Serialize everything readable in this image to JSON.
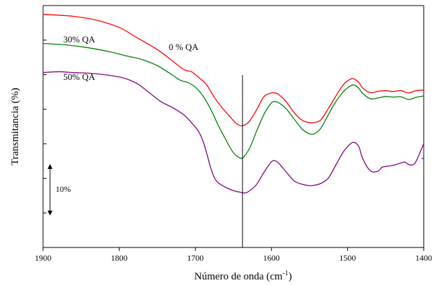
{
  "chart_data": {
    "type": "line",
    "xlabel": "Número de onda (cm",
    "xlabel_sup": "-1",
    "xlabel_end": ")",
    "ylabel": "Transmitancia (%)",
    "xlim": [
      1900,
      1400
    ],
    "x_ticks": [
      "1900",
      "1800",
      "1700",
      "1600",
      "1500",
      "1400"
    ],
    "reference_line_x": 1638,
    "scale_bar": {
      "label": "10%",
      "value": 10
    },
    "series": [
      {
        "name": "0 % QA",
        "color": "#ff0000",
        "x": [
          1900,
          1860,
          1830,
          1800,
          1780,
          1760,
          1745,
          1730,
          1715,
          1705,
          1695,
          1685,
          1675,
          1665,
          1655,
          1645,
          1638,
          1630,
          1620,
          1610,
          1600,
          1595,
          1590,
          1580,
          1570,
          1560,
          1550,
          1543,
          1535,
          1525,
          1515,
          1505,
          1495,
          1490,
          1485,
          1480,
          1470,
          1460,
          1450,
          1440,
          1430,
          1420,
          1410,
          1400
        ],
        "y": [
          80,
          79.3,
          78,
          75.5,
          72.5,
          69.5,
          67,
          64,
          61,
          60.3,
          58.2,
          55.7,
          51.5,
          48,
          45,
          42.3,
          41.8,
          43,
          47,
          51.7,
          53,
          53,
          52.4,
          49.8,
          46.2,
          43.7,
          42.8,
          42.9,
          43.8,
          47.8,
          52.1,
          56,
          57.9,
          57.6,
          56.5,
          54.7,
          53.1,
          53.6,
          53.8,
          53.5,
          53.8,
          53,
          53.8,
          54
        ]
      },
      {
        "name": "30% QA",
        "color": "#008000",
        "x": [
          1900,
          1870,
          1840,
          1810,
          1790,
          1770,
          1750,
          1735,
          1720,
          1710,
          1700,
          1690,
          1680,
          1670,
          1660,
          1650,
          1640,
          1635,
          1628,
          1620,
          1610,
          1600,
          1595,
          1590,
          1580,
          1570,
          1560,
          1550,
          1543,
          1535,
          1525,
          1515,
          1505,
          1495,
          1490,
          1485,
          1480,
          1470,
          1460,
          1450,
          1440,
          1430,
          1420,
          1410,
          1400
        ],
        "y": [
          70,
          69.5,
          68.5,
          67,
          65.7,
          64.5,
          62.4,
          60,
          57.4,
          56.6,
          55,
          52,
          47.5,
          42,
          37,
          32.5,
          30.6,
          31.5,
          34.4,
          39.6,
          45.6,
          49.6,
          50,
          49.6,
          47.4,
          44,
          40.7,
          39,
          39.1,
          41,
          45.7,
          50.2,
          53.6,
          55.6,
          55.6,
          54.5,
          52.8,
          51,
          51.3,
          51.8,
          51.6,
          51.7,
          50.8,
          51.5,
          52
        ]
      },
      {
        "name": "50% QA",
        "color": "#800080",
        "x": [
          1900,
          1880,
          1860,
          1840,
          1820,
          1800,
          1790,
          1775,
          1760,
          1745,
          1730,
          1715,
          1705,
          1695,
          1688,
          1680,
          1675,
          1670,
          1660,
          1650,
          1640,
          1635,
          1630,
          1620,
          1610,
          1600,
          1595,
          1590,
          1580,
          1570,
          1560,
          1550,
          1543,
          1535,
          1525,
          1515,
          1505,
          1495,
          1490,
          1485,
          1480,
          1470,
          1460,
          1455,
          1450,
          1440,
          1430,
          1425,
          1420,
          1415,
          1410,
          1400
        ],
        "y": [
          60,
          60.3,
          60,
          59.8,
          59.3,
          58.5,
          57.8,
          56,
          53,
          50,
          48,
          45.5,
          42.8,
          39.5,
          35,
          27.5,
          24,
          22.2,
          20.6,
          19.5,
          18.9,
          18.7,
          19.2,
          21.5,
          25.7,
          29.4,
          29.7,
          28.8,
          25.7,
          22.8,
          21.7,
          21.2,
          21.4,
          22,
          23.9,
          28.5,
          33,
          35.8,
          35.9,
          34.5,
          30.4,
          26.3,
          26.2,
          27.5,
          27.8,
          28.2,
          29,
          29.3,
          28.5,
          28.3,
          29.6,
          35.6
        ]
      }
    ]
  }
}
